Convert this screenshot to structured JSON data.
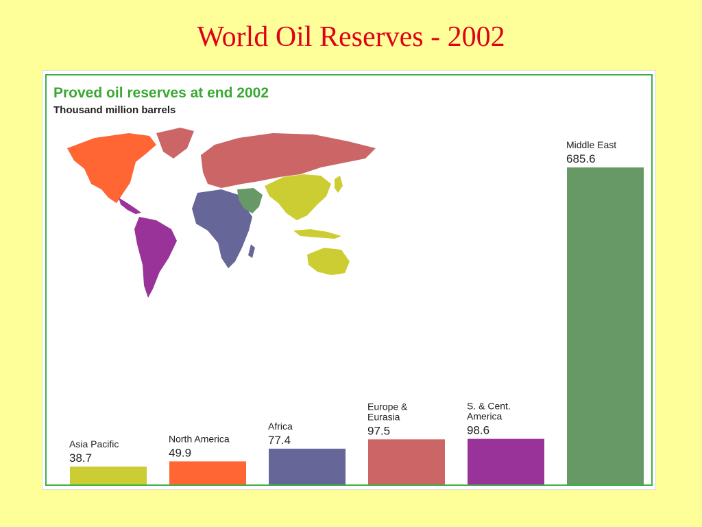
{
  "slide": {
    "title": "World Oil Reserves - 2002"
  },
  "chart": {
    "title": "Proved oil reserves at end 2002",
    "subtitle": "Thousand million barrels"
  },
  "map": {
    "description_colors": {
      "north_america": "#ff6633",
      "south_america": "#993399",
      "europe_eurasia": "#cc6666",
      "africa": "#666699",
      "middle_east": "#669966",
      "asia_pacific": "#cccc33"
    }
  },
  "chart_data": {
    "type": "bar",
    "title": "Proved oil reserves at end 2002",
    "subtitle": "Thousand million barrels",
    "categories": [
      [
        "Asia Pacific"
      ],
      [
        "North America"
      ],
      [
        "Africa"
      ],
      [
        "Europe &",
        "Eurasia"
      ],
      [
        "S. & Cent.",
        "America"
      ],
      [
        "Middle East"
      ]
    ],
    "values": [
      38.7,
      49.9,
      77.4,
      97.5,
      98.6,
      685.6
    ],
    "value_labels": [
      "38.7",
      "49.9",
      "77.4",
      "97.5",
      "98.6",
      "685.6"
    ],
    "colors": [
      "#cccc33",
      "#ff6633",
      "#666699",
      "#cc6666",
      "#993399",
      "#669966"
    ],
    "ylim": [
      0,
      685.6
    ],
    "grid": false,
    "legend": "none"
  }
}
